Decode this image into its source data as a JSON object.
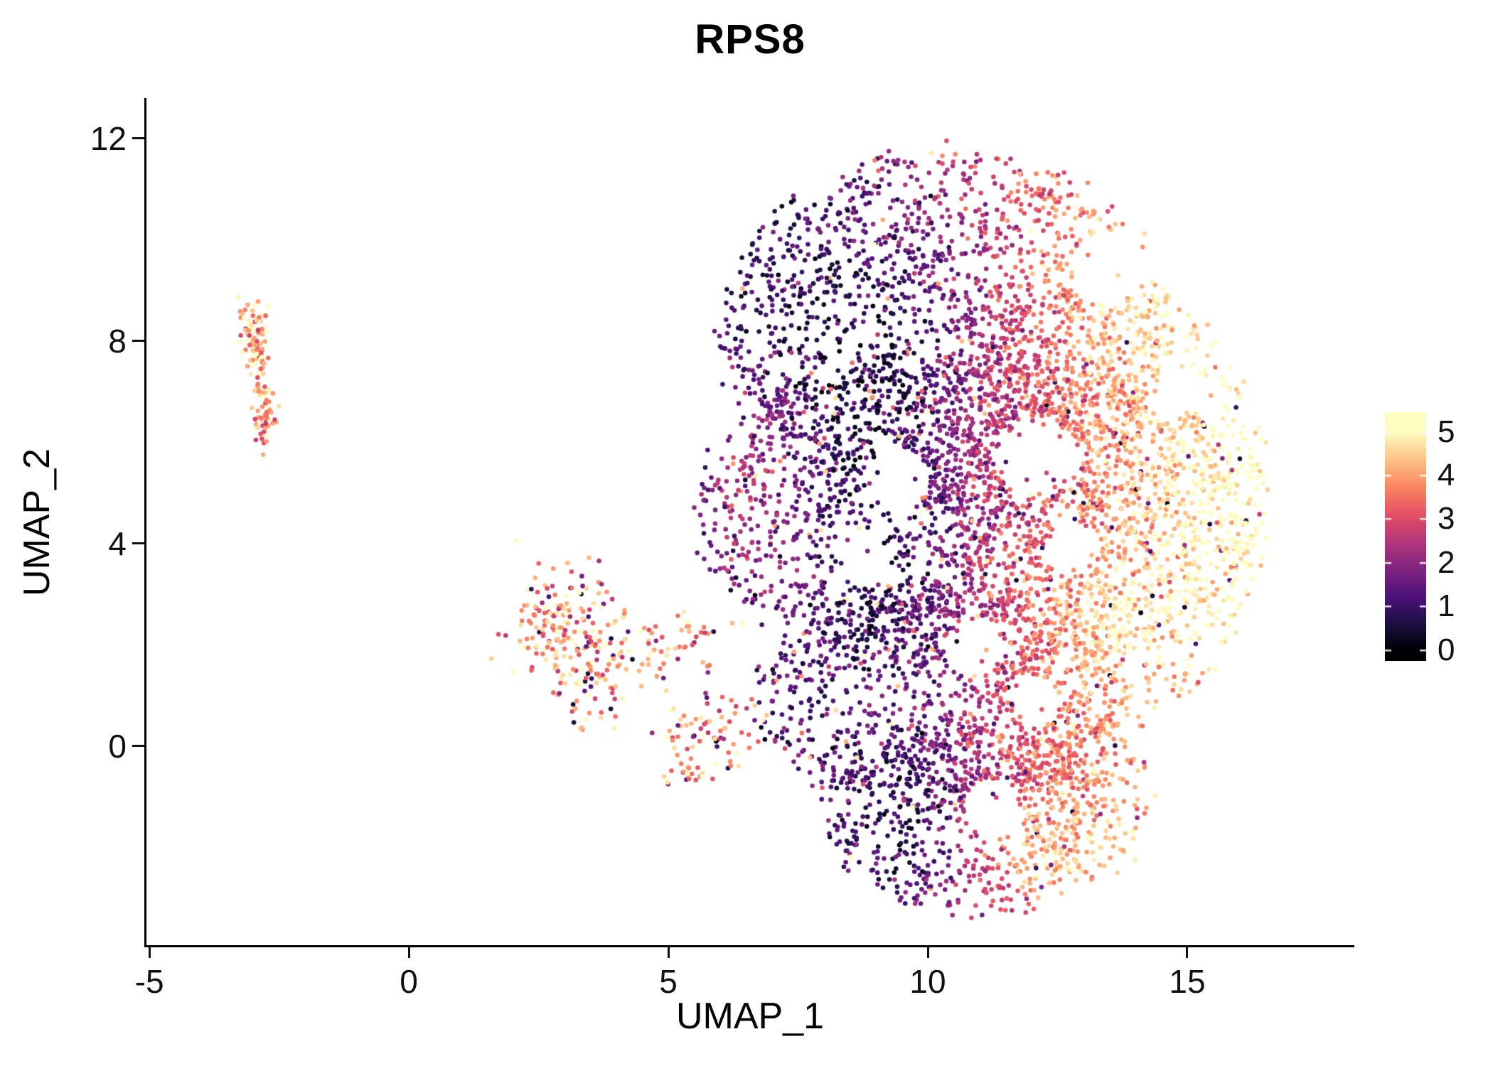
{
  "title": "RPS8",
  "colors": {
    "background": "#FFFFFF",
    "axis": "#000000",
    "text": "#111111"
  },
  "chart_data": {
    "type": "scatter",
    "title": "RPS8",
    "xlabel": "UMAP_1",
    "ylabel": "UMAP_2",
    "xlim": [
      -5.07,
      18.22
    ],
    "ylim": [
      -3.93,
      12.91
    ],
    "x_ticks": [
      -5,
      0,
      5,
      10,
      15
    ],
    "y_ticks": [
      0,
      4,
      8,
      12
    ],
    "grid": false,
    "point_radius_px": 3.3,
    "seed": 1337,
    "legend": {
      "type": "colorbar",
      "position": "right",
      "label_values": [
        5,
        4,
        3,
        2,
        1,
        0
      ],
      "domain": [
        0,
        5
      ],
      "bar_value_range": [
        -0.25,
        5.45
      ],
      "colormap": "magma",
      "colormap_stops": [
        [
          0.0,
          [
            0,
            0,
            4
          ]
        ],
        [
          0.125,
          [
            28,
            16,
            68
          ]
        ],
        [
          0.25,
          [
            79,
            18,
            123
          ]
        ],
        [
          0.375,
          [
            129,
            37,
            129
          ]
        ],
        [
          0.5,
          [
            181,
            54,
            122
          ]
        ],
        [
          0.625,
          [
            229,
            80,
            100
          ]
        ],
        [
          0.75,
          [
            251,
            135,
            97
          ]
        ],
        [
          0.875,
          [
            254,
            194,
            135
          ]
        ],
        [
          1.0,
          [
            252,
            253,
            191
          ]
        ]
      ]
    },
    "clusters": [
      {
        "name": "satellite-left",
        "gen": "gaussian_blobs",
        "blobs": [
          {
            "cx": -3.0,
            "cy": 8.3,
            "sx": 0.14,
            "sy": 0.28,
            "n": 55
          },
          {
            "cx": -2.92,
            "cy": 7.6,
            "sx": 0.1,
            "sy": 0.25,
            "n": 40
          },
          {
            "cx": -2.78,
            "cy": 6.55,
            "sx": 0.1,
            "sy": 0.28,
            "n": 50
          }
        ],
        "value_model": {
          "base": 4.0,
          "slope_y": 0.25,
          "y0": 7.5,
          "noise": 0.7,
          "outlier_frac": 0.05,
          "outlier_range": [
            2.6,
            3.4
          ],
          "min": 2.4,
          "max": 5.3
        }
      },
      {
        "name": "satellite-middle",
        "gen": "gaussian_blobs",
        "blobs": [
          {
            "cx": 2.95,
            "cy": 2.45,
            "sx": 0.5,
            "sy": 0.5,
            "n": 150
          },
          {
            "cx": 3.35,
            "cy": 1.3,
            "sx": 0.4,
            "sy": 0.5,
            "n": 60
          },
          {
            "cx": 4.7,
            "cy": 2.0,
            "sx": 0.75,
            "sy": 0.35,
            "n": 75
          },
          {
            "cx": 5.75,
            "cy": 0.3,
            "sx": 0.5,
            "sy": 0.4,
            "n": 75
          },
          {
            "cx": 5.25,
            "cy": -0.6,
            "sx": 0.3,
            "sy": 0.15,
            "n": 18
          }
        ],
        "value_model": {
          "base": 3.9,
          "noise": 0.85,
          "outlier_frac": 0.13,
          "outlier_range": [
            0.3,
            2.3
          ],
          "min": 0.3,
          "max": 5.4
        }
      },
      {
        "name": "main-blob",
        "gen": "ellipse_union",
        "jitter": 0.12,
        "ellipses": [
          {
            "cx": 10.3,
            "cy": 8.2,
            "rx": 4.3,
            "ry": 3.55,
            "n": 1800
          },
          {
            "cx": 10.9,
            "cy": 4.6,
            "rx": 5.4,
            "ry": 3.2,
            "n": 2000
          },
          {
            "cx": 13.2,
            "cy": 4.8,
            "rx": 3.3,
            "ry": 4.5,
            "n": 1300
          },
          {
            "cx": 10.3,
            "cy": 1.0,
            "rx": 3.6,
            "ry": 2.2,
            "n": 900
          },
          {
            "cx": 10.7,
            "cy": -1.4,
            "rx": 2.6,
            "ry": 1.9,
            "n": 650
          },
          {
            "cx": 12.9,
            "cy": -1.0,
            "rx": 1.3,
            "ry": 1.6,
            "n": 250
          }
        ],
        "holes": [
          {
            "x": 9.4,
            "y": 5.3,
            "r": 0.6
          },
          {
            "x": 12.1,
            "y": 5.7,
            "r": 0.8
          },
          {
            "x": 13.5,
            "y": 9.4,
            "r": 0.7
          },
          {
            "x": 10.9,
            "y": 1.95,
            "r": 0.55
          },
          {
            "x": 12.8,
            "y": 3.9,
            "r": 0.5
          },
          {
            "x": 14.9,
            "y": 7.0,
            "r": 0.5
          },
          {
            "x": 11.3,
            "y": -1.2,
            "r": 0.55
          },
          {
            "x": 8.7,
            "y": 3.7,
            "r": 0.55
          },
          {
            "x": 12.1,
            "y": 0.9,
            "r": 0.45
          }
        ],
        "value_model": {
          "base": 0.9,
          "slope_x": 0.38,
          "x0": 6,
          "bumps": [
            {
              "cx": 9.0,
              "cy": 7.8,
              "sx": 1.5,
              "sy": 2.0,
              "amp": -1.4
            },
            {
              "cx": 9.3,
              "cy": 3.3,
              "sx": 1.1,
              "sy": 1.9,
              "amp": -1.1
            },
            {
              "cx": 9.6,
              "cy": -1.5,
              "sx": 1.0,
              "sy": 1.4,
              "amp": -1.5
            },
            {
              "cx": 6.4,
              "cy": 5.3,
              "sx": 0.9,
              "sy": 1.7,
              "amp": 1.5
            },
            {
              "cx": 13.7,
              "cy": 2.4,
              "sx": 1.1,
              "sy": 1.0,
              "amp": 0.9
            },
            {
              "cx": 12.4,
              "cy": -2.1,
              "sx": 1.2,
              "sy": 0.7,
              "amp": 1.1
            },
            {
              "cx": 15.6,
              "cy": 5.2,
              "sx": 1.2,
              "sy": 1.8,
              "amp": 0.5
            },
            {
              "cx": 14.0,
              "cy": 8.8,
              "sx": 1.2,
              "sy": 1.2,
              "amp": 0.6
            }
          ],
          "noise": 0.5,
          "outlier_frac": 0.07,
          "outlier_range": [
            0.2,
            5.2
          ],
          "min": 0.05,
          "max": 5.4
        }
      }
    ]
  }
}
